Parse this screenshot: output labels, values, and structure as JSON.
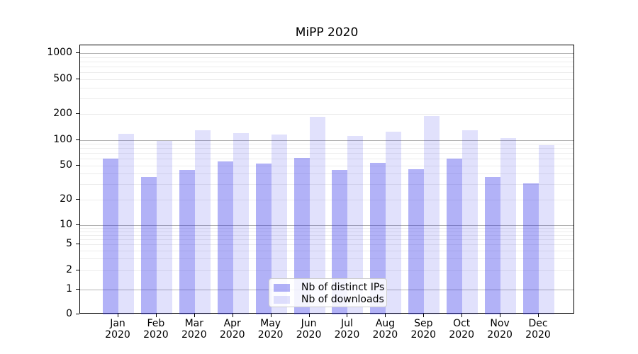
{
  "chart_data": {
    "type": "bar",
    "title": "MiPP 2020",
    "year": "2020",
    "categories": [
      "Jan",
      "Feb",
      "Mar",
      "Apr",
      "May",
      "Jun",
      "Jul",
      "Aug",
      "Sep",
      "Oct",
      "Nov",
      "Dec"
    ],
    "series": [
      {
        "name": "Nb of distinct IPs",
        "color": "#2a2ae8",
        "alpha": 0.36,
        "blended_hex": "#a4a4f6",
        "values": [
          60,
          37,
          44,
          56,
          53,
          61,
          44,
          54,
          45,
          60,
          37,
          31
        ]
      },
      {
        "name": "Nb of downloads",
        "color": "#2a2ae8",
        "alpha": 0.14,
        "blended_hex": "#dcdcfb",
        "values": [
          118,
          97,
          129,
          120,
          115,
          185,
          111,
          124,
          188,
          130,
          106,
          87
        ]
      }
    ],
    "yscale": "symlog",
    "yticks": [
      0,
      1,
      2,
      5,
      10,
      20,
      50,
      100,
      200,
      500,
      1000
    ],
    "major_gridlines": [
      1,
      10,
      100,
      1000
    ],
    "ylim": [
      0,
      1200
    ],
    "xlabel": "",
    "ylabel": "",
    "grid": true,
    "legend_position": "lower center"
  },
  "colors": {
    "background": "#ffffff",
    "spine": "#000000",
    "major_grid": "#b3b3b3",
    "minor_grid": "#ececec",
    "legend_border": "#cccccc"
  }
}
